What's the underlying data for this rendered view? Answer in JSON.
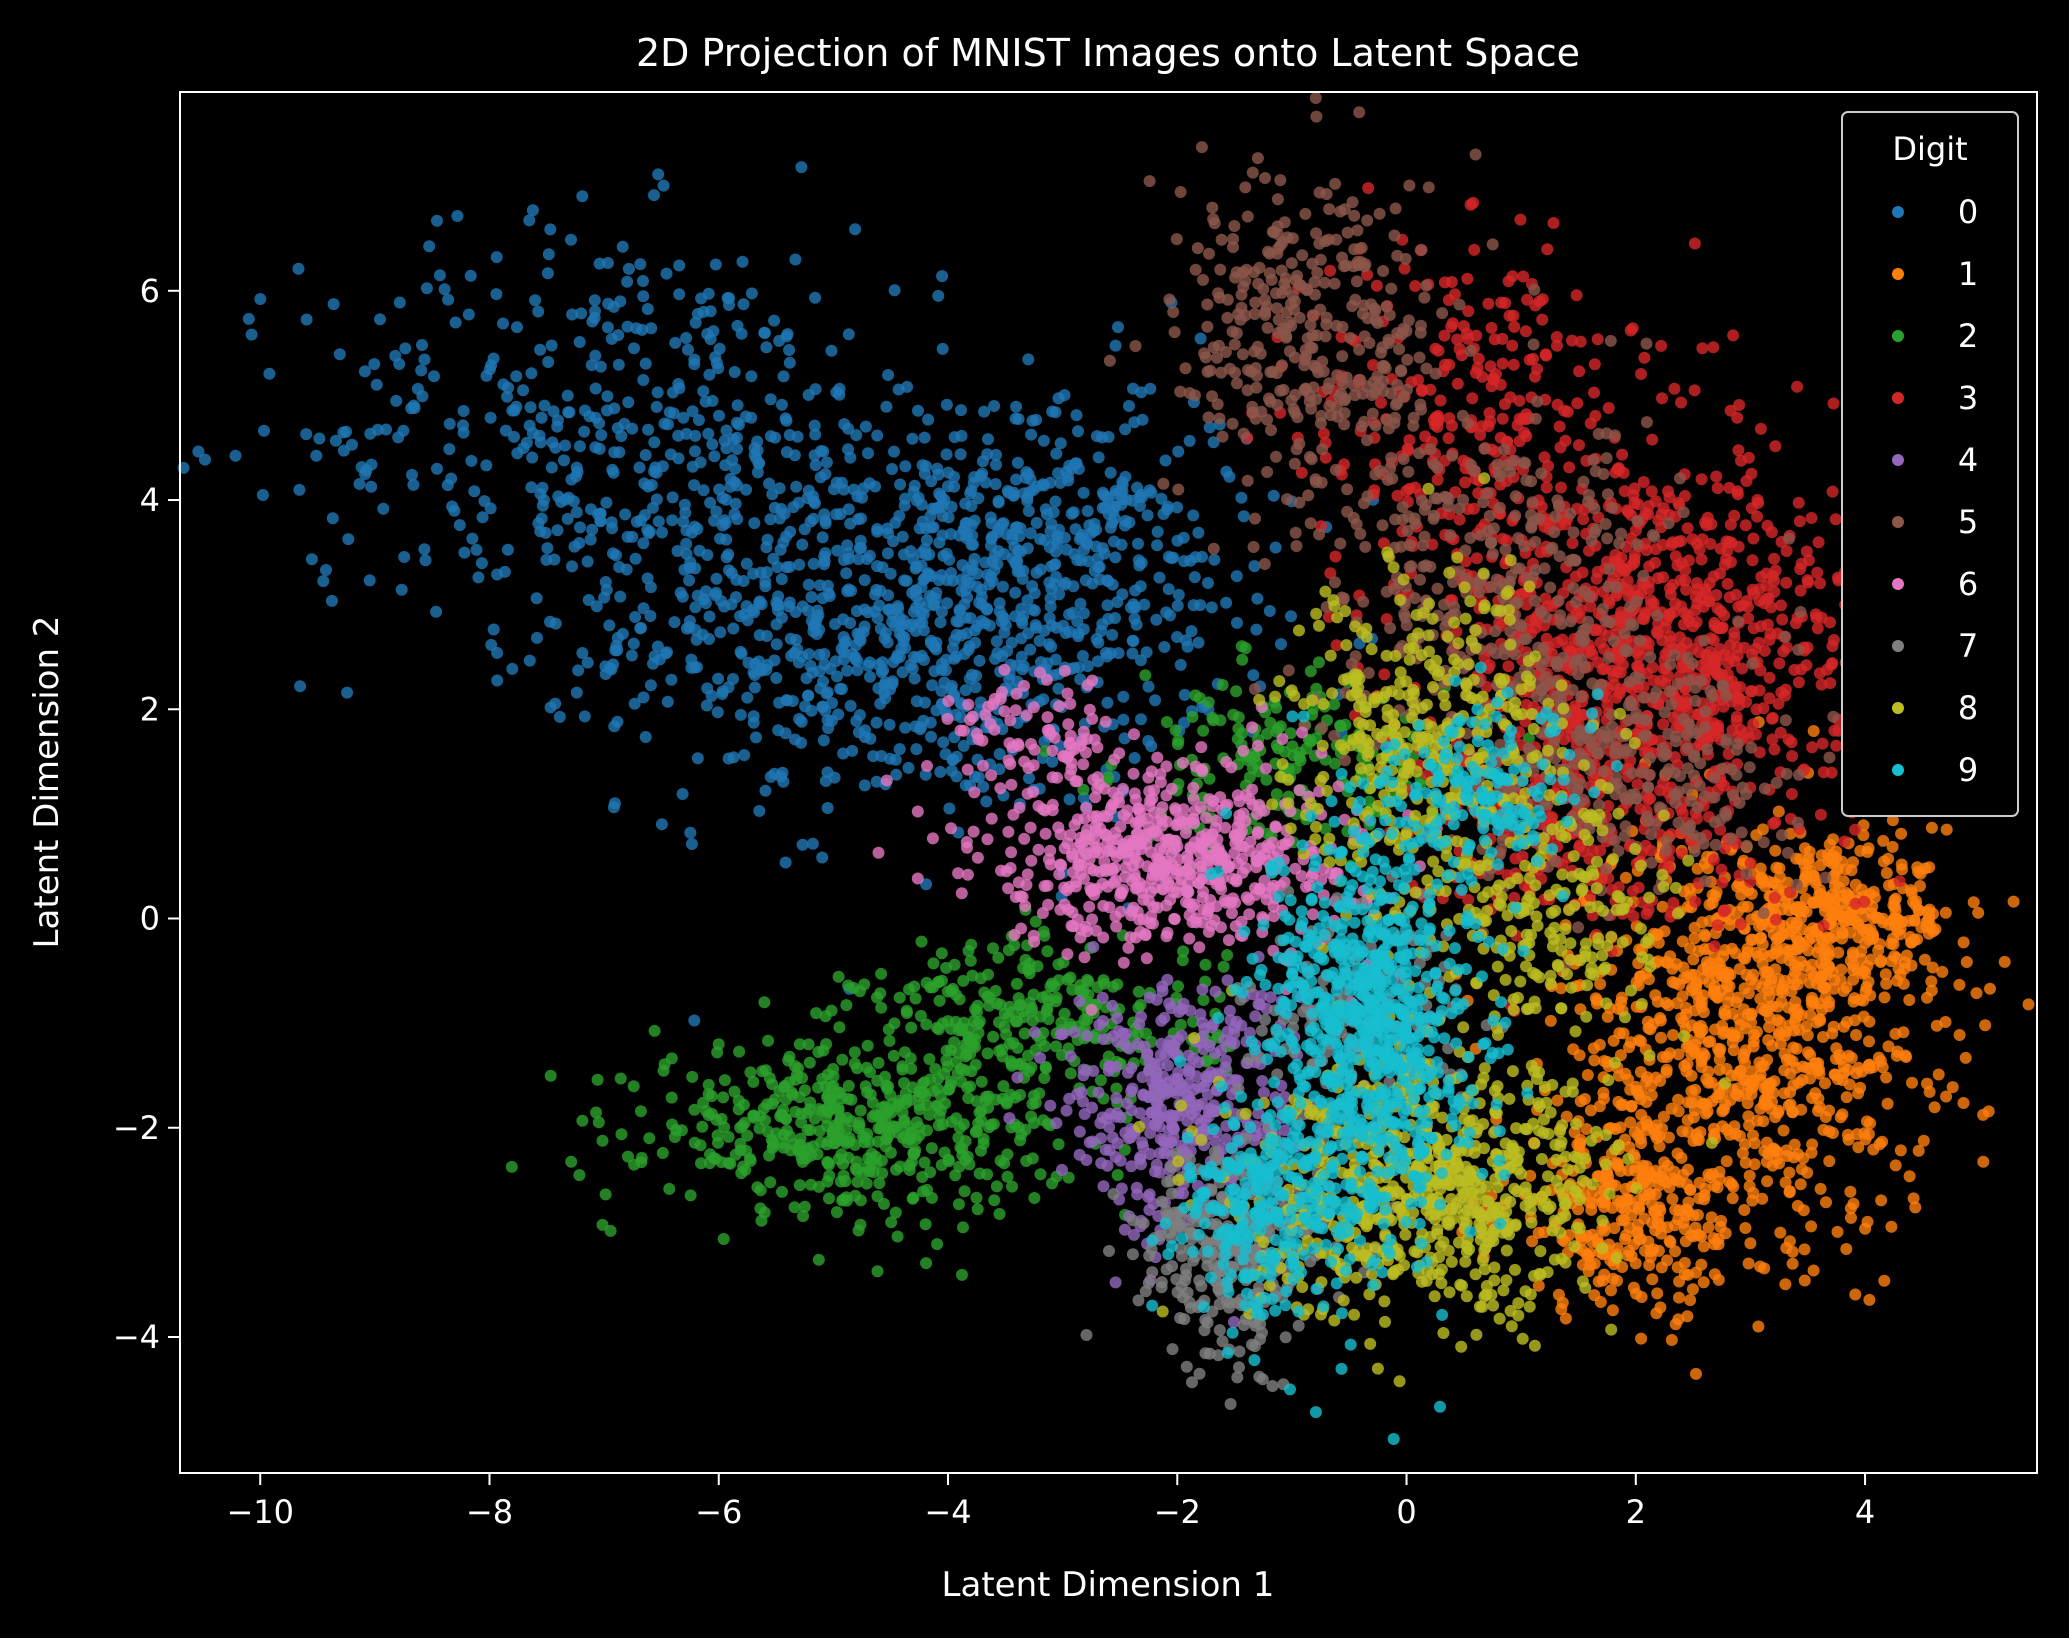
{
  "chart_data": {
    "type": "scatter",
    "title": "2D Projection of MNIST Images onto Latent Space",
    "xlabel": "Latent Dimension 1",
    "ylabel": "Latent Dimension 2",
    "xlim": [
      -10.7,
      5.5
    ],
    "ylim": [
      -5.3,
      7.9
    ],
    "xticks": [
      -10,
      -8,
      -6,
      -4,
      -2,
      0,
      2,
      4
    ],
    "yticks": [
      -4,
      -2,
      0,
      2,
      4,
      6
    ],
    "xtick_labels": [
      "−10",
      "−8",
      "−6",
      "−4",
      "−2",
      "0",
      "2",
      "4"
    ],
    "ytick_labels": [
      "−4",
      "−2",
      "0",
      "2",
      "4",
      "6"
    ],
    "grid": false,
    "background": "#000000",
    "legend": {
      "title": "Digit",
      "position": "top-right"
    },
    "series": [
      {
        "name": "0",
        "color": "#1f77b4",
        "clusters": [
          {
            "center": [
              -4.2,
              2.8
            ],
            "spread": [
              1.3,
              0.9
            ],
            "count": 900
          },
          {
            "center": [
              -6.8,
              4.6
            ],
            "spread": [
              1.4,
              1.0
            ],
            "count": 500
          },
          {
            "center": [
              -3.0,
              3.8
            ],
            "spread": [
              0.8,
              0.7
            ],
            "count": 200
          }
        ]
      },
      {
        "name": "1",
        "color": "#ff7f0e",
        "clusters": [
          {
            "center": [
              3.0,
              -1.0
            ],
            "spread": [
              0.8,
              1.0
            ],
            "count": 900
          },
          {
            "center": [
              2.0,
              -2.8
            ],
            "spread": [
              0.6,
              0.5
            ],
            "count": 300
          },
          {
            "center": [
              3.8,
              0.0
            ],
            "spread": [
              0.5,
              0.3
            ],
            "count": 250
          }
        ]
      },
      {
        "name": "2",
        "color": "#2ca02c",
        "clusters": [
          {
            "center": [
              -4.8,
              -2.0
            ],
            "spread": [
              0.9,
              0.4
            ],
            "count": 500
          },
          {
            "center": [
              -3.2,
              -1.0
            ],
            "spread": [
              0.8,
              0.4
            ],
            "count": 300
          },
          {
            "center": [
              -1.0,
              1.5
            ],
            "spread": [
              0.7,
              0.4
            ],
            "count": 200
          }
        ]
      },
      {
        "name": "3",
        "color": "#d62728",
        "clusters": [
          {
            "center": [
              2.2,
              2.6
            ],
            "spread": [
              0.9,
              0.9
            ],
            "count": 900
          },
          {
            "center": [
              0.6,
              4.8
            ],
            "spread": [
              0.7,
              0.9
            ],
            "count": 300
          },
          {
            "center": [
              1.5,
              1.0
            ],
            "spread": [
              0.8,
              0.6
            ],
            "count": 250
          }
        ]
      },
      {
        "name": "4",
        "color": "#9467bd",
        "clusters": [
          {
            "center": [
              -2.0,
              -1.8
            ],
            "spread": [
              0.5,
              0.6
            ],
            "count": 400
          }
        ]
      },
      {
        "name": "5",
        "color": "#8c564b",
        "clusters": [
          {
            "center": [
              -0.8,
              5.6
            ],
            "spread": [
              0.6,
              0.8
            ],
            "count": 350
          },
          {
            "center": [
              0.8,
              3.0
            ],
            "spread": [
              0.8,
              0.9
            ],
            "count": 400
          },
          {
            "center": [
              2.0,
              1.4
            ],
            "spread": [
              0.7,
              0.6
            ],
            "count": 250
          }
        ]
      },
      {
        "name": "6",
        "color": "#e377c2",
        "clusters": [
          {
            "center": [
              -2.0,
              0.6
            ],
            "spread": [
              0.8,
              0.45
            ],
            "count": 600
          },
          {
            "center": [
              -3.3,
              1.8
            ],
            "spread": [
              0.4,
              0.3
            ],
            "count": 80
          }
        ]
      },
      {
        "name": "7",
        "color": "#7f7f7f",
        "clusters": [
          {
            "center": [
              -1.5,
              -3.2
            ],
            "spread": [
              0.4,
              0.5
            ],
            "count": 300
          },
          {
            "center": [
              -0.5,
              -1.0
            ],
            "spread": [
              0.5,
              0.6
            ],
            "count": 150
          }
        ]
      },
      {
        "name": "8",
        "color": "#bcbd22",
        "clusters": [
          {
            "center": [
              0.2,
              -2.6
            ],
            "spread": [
              0.8,
              0.6
            ],
            "count": 700
          },
          {
            "center": [
              0.2,
              1.6
            ],
            "spread": [
              0.6,
              0.8
            ],
            "count": 400
          },
          {
            "center": [
              1.3,
              0.0
            ],
            "spread": [
              0.5,
              0.7
            ],
            "count": 200
          }
        ]
      },
      {
        "name": "9",
        "color": "#17becf",
        "clusters": [
          {
            "center": [
              -0.3,
              -1.0
            ],
            "spread": [
              0.45,
              1.0
            ],
            "count": 800
          },
          {
            "center": [
              -1.2,
              -2.8
            ],
            "spread": [
              0.4,
              0.5
            ],
            "count": 250
          },
          {
            "center": [
              0.7,
              1.2
            ],
            "spread": [
              0.4,
              0.4
            ],
            "count": 150
          }
        ]
      }
    ]
  }
}
